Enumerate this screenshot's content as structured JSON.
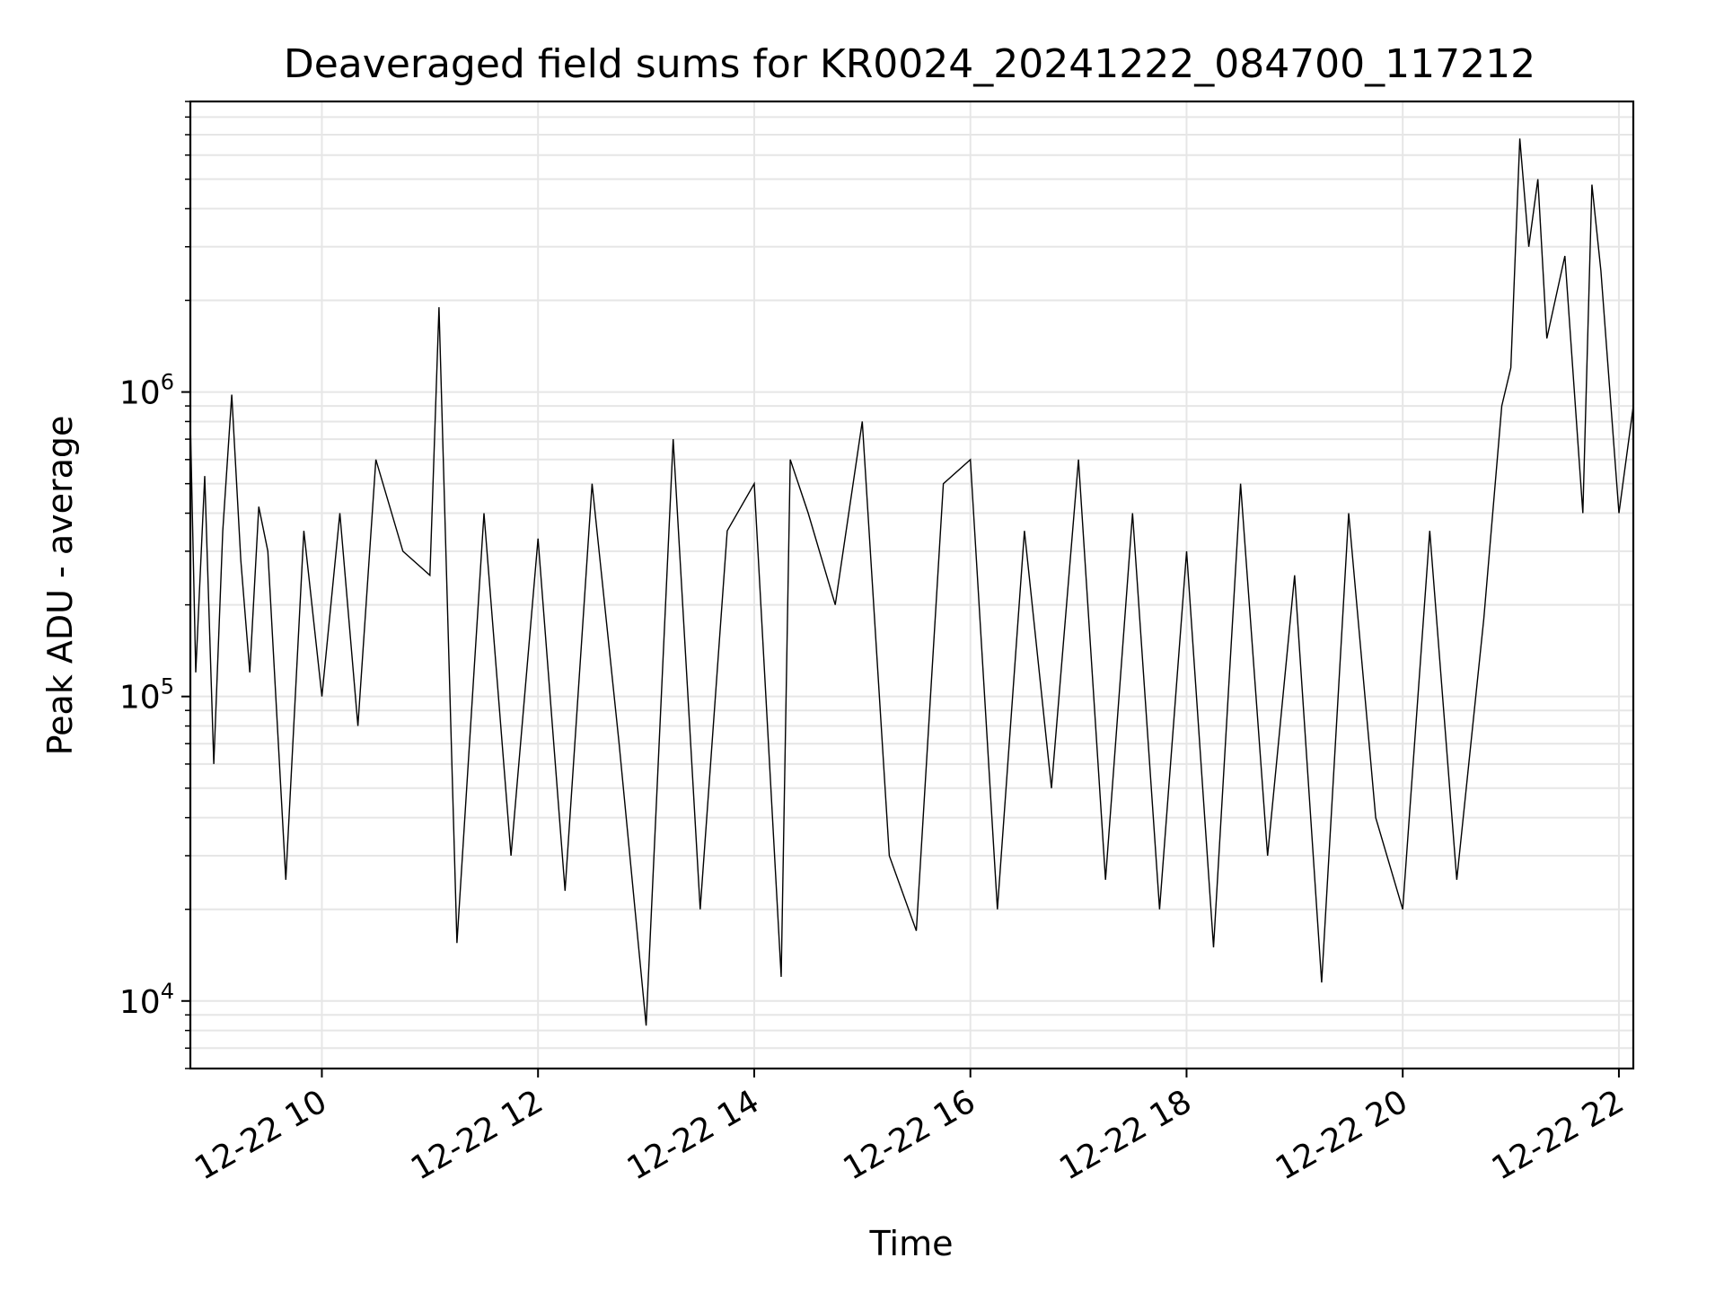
{
  "chart_data": {
    "type": "line",
    "title": "Deaveraged field sums for KR0024_20241222_084700_117212",
    "xlabel": "Time",
    "ylabel": "Peak ADU - average",
    "x_range": [
      "2024-12-22 08:47",
      "2024-12-22 22:08"
    ],
    "ylim": [
      6000,
      9000000
    ],
    "yscale": "log",
    "grid": true,
    "legend": "none",
    "x_ticks": [
      {
        "x": "2024-12-22 10:00",
        "label": "12-22 10"
      },
      {
        "x": "2024-12-22 12:00",
        "label": "12-22 12"
      },
      {
        "x": "2024-12-22 14:00",
        "label": "12-22 14"
      },
      {
        "x": "2024-12-22 16:00",
        "label": "12-22 16"
      },
      {
        "x": "2024-12-22 18:00",
        "label": "12-22 18"
      },
      {
        "x": "2024-12-22 20:00",
        "label": "12-22 20"
      },
      {
        "x": "2024-12-22 22:00",
        "label": "12-22 22"
      }
    ],
    "y_ticks": [
      {
        "value": 10000,
        "base": "10",
        "exp": "4"
      },
      {
        "value": 100000,
        "base": "10",
        "exp": "5"
      },
      {
        "value": 1000000,
        "base": "10",
        "exp": "6"
      }
    ],
    "series": [
      {
        "color": "#000000",
        "x": [
          "2024-12-22 08:47",
          "2024-12-22 08:50",
          "2024-12-22 08:55",
          "2024-12-22 09:00",
          "2024-12-22 09:05",
          "2024-12-22 09:10",
          "2024-12-22 09:15",
          "2024-12-22 09:20",
          "2024-12-22 09:25",
          "2024-12-22 09:30",
          "2024-12-22 09:40",
          "2024-12-22 09:50",
          "2024-12-22 10:00",
          "2024-12-22 10:10",
          "2024-12-22 10:20",
          "2024-12-22 10:30",
          "2024-12-22 10:45",
          "2024-12-22 11:00",
          "2024-12-22 11:05",
          "2024-12-22 11:15",
          "2024-12-22 11:30",
          "2024-12-22 11:45",
          "2024-12-22 12:00",
          "2024-12-22 12:15",
          "2024-12-22 12:30",
          "2024-12-22 12:45",
          "2024-12-22 13:00",
          "2024-12-22 13:15",
          "2024-12-22 13:30",
          "2024-12-22 13:45",
          "2024-12-22 14:00",
          "2024-12-22 14:15",
          "2024-12-22 14:20",
          "2024-12-22 14:30",
          "2024-12-22 14:45",
          "2024-12-22 15:00",
          "2024-12-22 15:15",
          "2024-12-22 15:30",
          "2024-12-22 15:45",
          "2024-12-22 16:00",
          "2024-12-22 16:15",
          "2024-12-22 16:30",
          "2024-12-22 16:45",
          "2024-12-22 17:00",
          "2024-12-22 17:15",
          "2024-12-22 17:30",
          "2024-12-22 17:45",
          "2024-12-22 18:00",
          "2024-12-22 18:15",
          "2024-12-22 18:30",
          "2024-12-22 18:45",
          "2024-12-22 19:00",
          "2024-12-22 19:15",
          "2024-12-22 19:30",
          "2024-12-22 19:45",
          "2024-12-22 20:00",
          "2024-12-22 20:15",
          "2024-12-22 20:30",
          "2024-12-22 20:45",
          "2024-12-22 20:55",
          "2024-12-22 21:00",
          "2024-12-22 21:05",
          "2024-12-22 21:10",
          "2024-12-22 21:15",
          "2024-12-22 21:20",
          "2024-12-22 21:30",
          "2024-12-22 21:40",
          "2024-12-22 21:45",
          "2024-12-22 21:50",
          "2024-12-22 22:00",
          "2024-12-22 22:08"
        ],
        "y": [
          800000,
          120000,
          530000,
          60000,
          350000,
          980000,
          280000,
          120000,
          420000,
          300000,
          25000,
          350000,
          100000,
          400000,
          80000,
          600000,
          300000,
          250000,
          1900000,
          15500,
          400000,
          30000,
          330000,
          23000,
          500000,
          70000,
          8300,
          700000,
          20000,
          350000,
          500000,
          12000,
          600000,
          400000,
          200000,
          800000,
          30000,
          17000,
          500000,
          600000,
          20000,
          350000,
          50000,
          600000,
          25000,
          400000,
          20000,
          300000,
          15000,
          500000,
          30000,
          250000,
          11500,
          400000,
          40000,
          20000,
          350000,
          25000,
          180000,
          900000,
          1200000,
          6800000,
          3000000,
          5000000,
          1500000,
          2800000,
          400000,
          4800000,
          2500000,
          400000,
          900000
        ]
      }
    ]
  }
}
